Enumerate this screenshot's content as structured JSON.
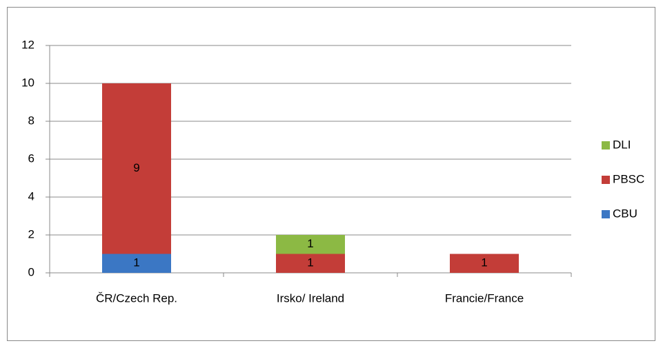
{
  "chart_data": {
    "type": "stacked_bar",
    "categories": [
      "ČR/Czech Rep.",
      "Irsko/ Ireland",
      "Francie/France"
    ],
    "series": [
      {
        "name": "CBU",
        "color": "#3b77c4",
        "values": [
          1,
          0,
          0
        ]
      },
      {
        "name": "PBSC",
        "color": "#c33d38",
        "values": [
          9,
          1,
          1
        ]
      },
      {
        "name": "DLI",
        "color": "#8cb944",
        "values": [
          0,
          1,
          0
        ]
      }
    ],
    "ylim": [
      0,
      12
    ],
    "yticks": [
      0,
      2,
      4,
      6,
      8,
      10,
      12
    ],
    "grid": true,
    "legend": "right"
  }
}
